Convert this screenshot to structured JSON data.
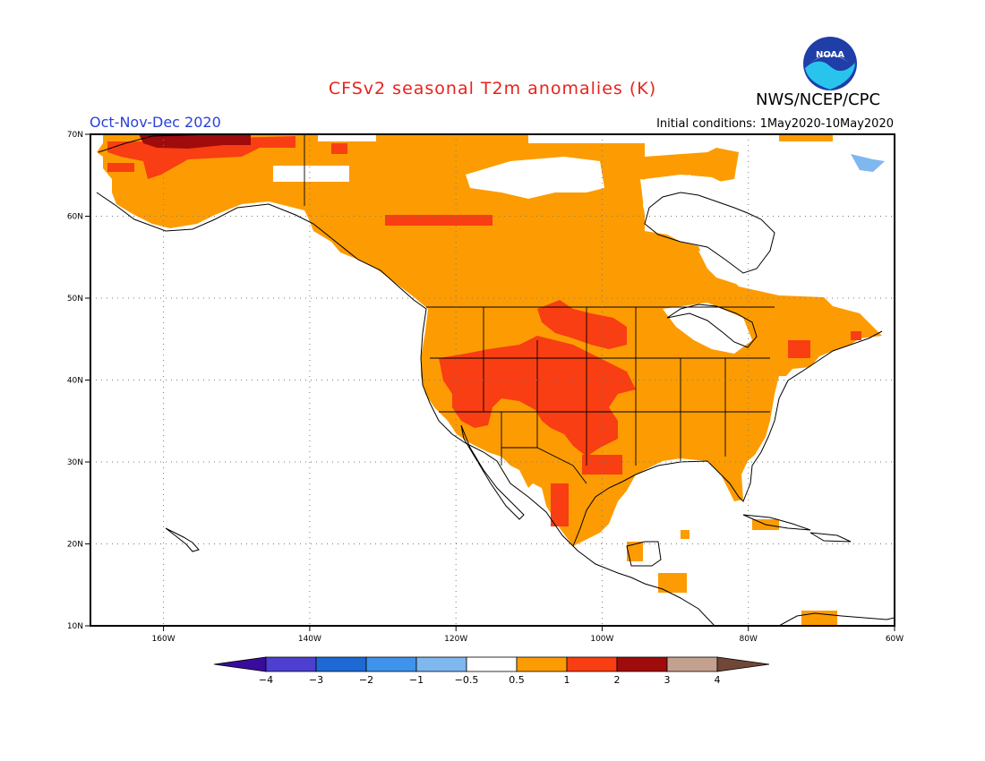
{
  "header": {
    "title": "CFSv2 seasonal T2m anomalies (K)",
    "period": "Oct-Nov-Dec 2020",
    "initial_conditions": "Initial conditions: 1May2020-10May2020",
    "agency": "NWS/NCEP/CPC",
    "logo_text": "NOAA"
  },
  "map": {
    "projection": "equirectangular",
    "lon_range": [
      -170,
      -60
    ],
    "lat_range": [
      10,
      70
    ],
    "lat_ticks": [
      "70N",
      "60N",
      "50N",
      "40N",
      "30N",
      "20N",
      "10N"
    ],
    "lon_ticks": [
      "160W",
      "140W",
      "120W",
      "100W",
      "80W",
      "60W"
    ],
    "grid": "dotted"
  },
  "legend": {
    "tick_labels": [
      "-4",
      "-3",
      "-2",
      "-1",
      "-0.5",
      "0.5",
      "1",
      "2",
      "3",
      "4"
    ],
    "colors": [
      "#3a0c9e",
      "#4e3fd0",
      "#1d6ad5",
      "#3f93ea",
      "#7fb7ef",
      "#ffffff",
      "#fc9c02",
      "#f83e12",
      "#a00b0b",
      "#c4a18f",
      "#71473a"
    ]
  },
  "regions": {
    "warm_0_5_to_1": "#fc9c02",
    "warm_1_to_2": "#f83e12",
    "warm_2_to_3": "#a00b0b",
    "cool_minus_1_to_minus_0_5": "#7fb7ef"
  }
}
